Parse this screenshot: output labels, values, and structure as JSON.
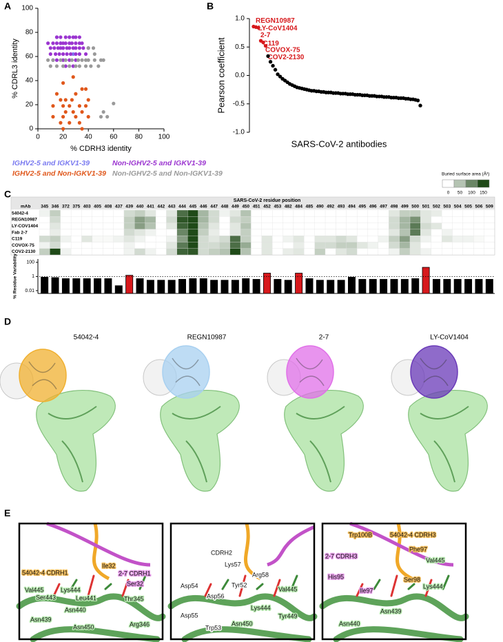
{
  "panel_letters": [
    "A",
    "B",
    "C",
    "D",
    "E"
  ],
  "chart_data": [
    {
      "type": "scatter",
      "xlabel": "% CDRH3 identity",
      "ylabel": "% CDRL3 identity",
      "xlim": [
        0,
        100
      ],
      "ylim": [
        0,
        100
      ],
      "xticks": [
        0,
        20,
        40,
        60,
        80,
        100
      ],
      "yticks": [
        0,
        20,
        40,
        60,
        80,
        100
      ],
      "series": [
        {
          "name": "IGHV2-5 and IGKV1-39",
          "color": "#7b7bf0",
          "x": [
            15,
            25,
            18,
            20,
            28,
            33,
            12
          ],
          "y": [
            76,
            76,
            71,
            67,
            62,
            62,
            57
          ]
        },
        {
          "name": "Non-IGHV2-5 and IGKV1-39",
          "color": "#9b35d0",
          "x": [
            15,
            18,
            22,
            25,
            28,
            30,
            33,
            8,
            12,
            15,
            18,
            20,
            22,
            25,
            27,
            30,
            33,
            35,
            10,
            13,
            16,
            18,
            20,
            23,
            25,
            28,
            30,
            33,
            36,
            40,
            10,
            14,
            17,
            20,
            23,
            26,
            30,
            33,
            38,
            15,
            20,
            25,
            30,
            22,
            28
          ],
          "y": [
            76,
            76,
            76,
            76,
            76,
            76,
            76,
            71,
            71,
            71,
            71,
            71,
            71,
            71,
            71,
            71,
            71,
            71,
            67,
            67,
            67,
            67,
            67,
            67,
            67,
            67,
            67,
            67,
            67,
            67,
            62,
            62,
            62,
            62,
            62,
            62,
            62,
            62,
            62,
            57,
            57,
            57,
            57,
            52,
            52
          ]
        },
        {
          "name": "IGHV2-5 and Non-IGKV1-39",
          "color": "#e0581c",
          "x": [
            35,
            38,
            15,
            30,
            18,
            22,
            27,
            40,
            12,
            20,
            25,
            33,
            38,
            22,
            28,
            35,
            12,
            20,
            30,
            40,
            18,
            25,
            33,
            20,
            35,
            28,
            20
          ],
          "y": [
            33,
            33,
            29,
            29,
            24,
            24,
            24,
            24,
            19,
            19,
            19,
            19,
            19,
            14,
            14,
            14,
            10,
            10,
            10,
            10,
            5,
            5,
            5,
            0,
            0,
            43,
            38
          ]
        },
        {
          "name": "Non-IGHV2-5 and Non-IGKV1-39",
          "color": "#9a9a9a",
          "x": [
            8,
            12,
            18,
            22,
            27,
            32,
            35,
            38,
            40,
            45,
            50,
            52,
            10,
            15,
            20,
            25,
            30,
            33,
            38,
            42,
            48,
            45,
            60,
            52,
            50,
            55,
            40,
            44
          ],
          "y": [
            57,
            57,
            57,
            57,
            57,
            57,
            57,
            57,
            57,
            57,
            57,
            57,
            52,
            52,
            52,
            52,
            52,
            52,
            52,
            52,
            52,
            62,
            21,
            14,
            10,
            10,
            67,
            67
          ]
        }
      ]
    },
    {
      "type": "dot",
      "ylabel": "Pearson coefficient",
      "xlabel": "SARS-CoV-2 antibodies",
      "ylim": [
        -1,
        1
      ],
      "yticks": [
        {
          "value": -1,
          "label": "-1.0"
        },
        -0.5,
        {
          "value": 0,
          "label": "0.0"
        },
        0.5,
        {
          "value": 1,
          "label": "1.0"
        }
      ],
      "color": "#000000",
      "highlight_color": "#d7191c",
      "categories": [
        "REGN10987",
        "LY-CoV1404",
        "2-7",
        "C119",
        "COVOX-75",
        "COV2-2130",
        null,
        null,
        null,
        null,
        null,
        null,
        null,
        null,
        null,
        null,
        null,
        null,
        null,
        null,
        null,
        null,
        null,
        null,
        null,
        null,
        null,
        null,
        null,
        null,
        null,
        null,
        null,
        null,
        null,
        null,
        null,
        null,
        null,
        null,
        null,
        null,
        null,
        null,
        null,
        null,
        null,
        null,
        null,
        null,
        null,
        null,
        null,
        null,
        null,
        null,
        null,
        null,
        null,
        null,
        null,
        null,
        null,
        null,
        null,
        null,
        null,
        null,
        null,
        null
      ],
      "values": [
        0.86,
        0.85,
        0.84,
        0.61,
        0.58,
        0.52,
        0.34,
        0.24,
        0.17,
        0.1,
        0.02,
        -0.02,
        -0.06,
        -0.09,
        -0.12,
        -0.15,
        -0.17,
        -0.19,
        -0.21,
        -0.22,
        -0.23,
        -0.24,
        -0.25,
        -0.26,
        -0.27,
        -0.27,
        -0.28,
        -0.28,
        -0.29,
        -0.29,
        -0.3,
        -0.3,
        -0.3,
        -0.31,
        -0.31,
        -0.31,
        -0.32,
        -0.32,
        -0.32,
        -0.33,
        -0.33,
        -0.33,
        -0.34,
        -0.34,
        -0.34,
        -0.35,
        -0.35,
        -0.35,
        -0.36,
        -0.36,
        -0.36,
        -0.37,
        -0.37,
        -0.37,
        -0.38,
        -0.38,
        -0.38,
        -0.39,
        -0.39,
        -0.39,
        -0.4,
        -0.4,
        -0.4,
        -0.41,
        -0.41,
        -0.42,
        -0.42,
        -0.43,
        -0.44,
        -0.53
      ]
    },
    {
      "type": "heatmap",
      "title": "SARS-CoV-2 residue position",
      "row_header": "mAb",
      "colorbar_title": "Buried surface area (Å²)",
      "zlim": [
        0,
        150
      ],
      "zticks": [
        0,
        50,
        100,
        150
      ],
      "color_low": "#ffffff",
      "color_high": "#1f4a18",
      "categories": [
        "345",
        "346",
        "372",
        "375",
        "403",
        "405",
        "408",
        "437",
        "439",
        "440",
        "441",
        "442",
        "443",
        "444",
        "445",
        "446",
        "447",
        "448",
        "449",
        "450",
        "451",
        "452",
        "453",
        "482",
        "484",
        "485",
        "490",
        "492",
        "493",
        "494",
        "495",
        "496",
        "497",
        "498",
        "499",
        "500",
        "501",
        "502",
        "503",
        "504",
        "505",
        "506",
        "509"
      ],
      "rows": [
        "54042-4",
        "REGN10987",
        "LY-COV1404",
        "Fab 2-7",
        "C119",
        "COVOX-75",
        "COV2-2130"
      ],
      "values": [
        [
          10,
          40,
          0,
          0,
          0,
          0,
          0,
          0,
          30,
          40,
          20,
          0,
          20,
          120,
          150,
          60,
          30,
          10,
          20,
          50,
          0,
          0,
          0,
          0,
          0,
          0,
          0,
          0,
          0,
          0,
          0,
          0,
          0,
          20,
          40,
          40,
          20,
          15,
          0,
          0,
          0,
          0,
          0
        ],
        [
          0,
          30,
          0,
          0,
          0,
          0,
          0,
          0,
          40,
          80,
          60,
          0,
          30,
          140,
          160,
          60,
          30,
          0,
          30,
          40,
          0,
          0,
          0,
          0,
          0,
          0,
          0,
          0,
          0,
          0,
          0,
          0,
          0,
          30,
          60,
          90,
          20,
          0,
          0,
          0,
          0,
          0,
          0
        ],
        [
          0,
          20,
          0,
          0,
          0,
          0,
          0,
          0,
          40,
          80,
          50,
          0,
          20,
          130,
          160,
          50,
          20,
          0,
          20,
          50,
          0,
          0,
          0,
          0,
          0,
          0,
          0,
          0,
          0,
          0,
          0,
          0,
          0,
          30,
          60,
          110,
          30,
          20,
          0,
          0,
          0,
          0,
          0
        ],
        [
          0,
          15,
          0,
          0,
          0,
          0,
          0,
          0,
          30,
          20,
          10,
          0,
          0,
          100,
          150,
          40,
          15,
          0,
          20,
          40,
          0,
          0,
          0,
          0,
          0,
          0,
          0,
          0,
          0,
          0,
          0,
          0,
          0,
          20,
          50,
          110,
          20,
          0,
          10,
          0,
          0,
          0,
          0
        ],
        [
          30,
          40,
          10,
          0,
          20,
          5,
          5,
          10,
          20,
          10,
          0,
          0,
          10,
          80,
          150,
          30,
          20,
          30,
          120,
          40,
          0,
          20,
          0,
          10,
          20,
          0,
          20,
          20,
          30,
          20,
          0,
          0,
          10,
          40,
          80,
          30,
          10,
          0,
          20,
          10,
          10,
          5,
          0
        ],
        [
          10,
          30,
          0,
          0,
          0,
          0,
          0,
          0,
          10,
          0,
          0,
          0,
          20,
          110,
          150,
          30,
          30,
          40,
          120,
          70,
          0,
          20,
          0,
          0,
          15,
          0,
          30,
          30,
          40,
          40,
          20,
          10,
          0,
          30,
          60,
          20,
          0,
          0,
          0,
          0,
          0,
          0,
          0
        ],
        [
          40,
          150,
          10,
          0,
          0,
          0,
          0,
          0,
          10,
          30,
          10,
          0,
          30,
          130,
          140,
          30,
          40,
          50,
          150,
          50,
          0,
          20,
          0,
          15,
          20,
          0,
          40,
          0,
          20,
          30,
          0,
          0,
          0,
          10,
          40,
          20,
          10,
          0,
          0,
          0,
          0,
          0,
          0
        ]
      ]
    },
    {
      "type": "bar",
      "ylabel": "% Residue Variability",
      "log_scale": true,
      "ylim": [
        0.004,
        300
      ],
      "yticks": [
        0.01,
        1,
        100
      ],
      "reference_line": 1,
      "values": [
        0.8,
        0.7,
        0.5,
        0.5,
        0.5,
        0.5,
        0.5,
        0.05,
        1.5,
        0.5,
        0.3,
        0.3,
        0.3,
        0.4,
        0.5,
        0.5,
        0.3,
        0.3,
        0.3,
        0.5,
        0.4,
        3,
        0.4,
        0.3,
        3,
        0.5,
        0.3,
        0.3,
        0.3,
        0.8,
        0.4,
        0.4,
        0.4,
        0.4,
        0.4,
        0.5,
        20,
        0.4,
        0.4,
        0.4,
        0.4,
        0.4,
        0.4
      ],
      "colors": [
        "#000000",
        "#000000",
        "#000000",
        "#000000",
        "#000000",
        "#000000",
        "#000000",
        "#000000",
        "#d7191c",
        "#000000",
        "#000000",
        "#000000",
        "#000000",
        "#000000",
        "#000000",
        "#000000",
        "#000000",
        "#000000",
        "#000000",
        "#000000",
        "#000000",
        "#d7191c",
        "#000000",
        "#000000",
        "#d7191c",
        "#000000",
        "#000000",
        "#000000",
        "#000000",
        "#000000",
        "#000000",
        "#000000",
        "#000000",
        "#000000",
        "#000000",
        "#000000",
        "#d7191c",
        "#000000",
        "#000000",
        "#000000",
        "#000000",
        "#000000",
        "#000000"
      ]
    }
  ],
  "structures": {
    "labels": [
      "54042-4",
      "REGN10987",
      "2-7",
      "LY-CoV1404"
    ]
  },
  "closeups": [
    {
      "labels": [
        "54042-4 CDRH1",
        "2-7 CDRH1",
        "Ile32",
        "Ser32",
        "Val445",
        "Lys444",
        "Leu441",
        "Ser443",
        "Asn440",
        "Thr345",
        "Asn439",
        "Asn450",
        "Arg346"
      ]
    },
    {
      "labels": [
        "CDRH2",
        "Lys57",
        "Arg58",
        "Asp54",
        "Tyr52",
        "Val445",
        "Asp56",
        "Asp55",
        "Lys444",
        "Tyr449",
        "Trp53",
        "Asn450"
      ]
    },
    {
      "labels": [
        "Trp100B",
        "54042-4 CDRH3",
        "Phe97",
        "2-7 CDRH3",
        "Val445",
        "His95",
        "Ser98",
        "Lys444",
        "Ile97",
        "Asn439",
        "Asn440"
      ]
    }
  ]
}
